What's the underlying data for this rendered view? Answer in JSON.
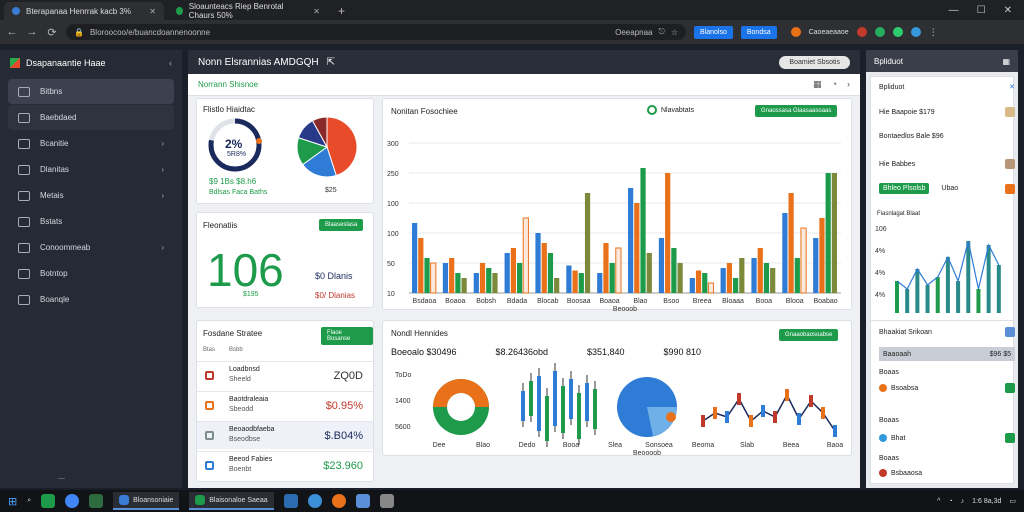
{
  "browser": {
    "tabs": [
      {
        "title": "Bterapanaa Henrrak kacb 3%",
        "active": true
      },
      {
        "title": "Sloaunteacs Riep Benrotal Chaurs 50%",
        "active": false
      }
    ],
    "address": "Bloroocoo/e/buancdoannenoonne",
    "address_tail": "Oeeapnaa",
    "buttons": [
      "Blanolso",
      "Bondsa",
      "Caoeaeaaoe"
    ]
  },
  "sidebar": {
    "brand": "Dsapanaantie Haae",
    "items": [
      {
        "label": "Bitbns"
      },
      {
        "label": "Baebdaed"
      },
      {
        "label": "Bcanitie"
      },
      {
        "label": "Dlanitas"
      },
      {
        "label": "Metais"
      },
      {
        "label": "Bstats"
      },
      {
        "label": "Conoommeab"
      },
      {
        "label": "Botntop"
      },
      {
        "label": "Boanqle"
      }
    ],
    "footer": "—"
  },
  "main": {
    "title": "Nonn Elsrannias  AMDGQH",
    "pill": "Boamiet Sbsotis",
    "subhead": "Norrann Shisnoe",
    "gauge": {
      "title": "Flistlo Hiaidtac",
      "value_label": "2%",
      "sub": "5R8%",
      "percent": 0.78,
      "stat1": "$9 1Bs  $8.h6",
      "stat2": "Bdlsas Faca Baths"
    },
    "pie1": {
      "label": "$25"
    },
    "big": {
      "title": "Fleonatiis",
      "button": "Blaaseslasa",
      "number": "106",
      "sub": "$195",
      "r1": "$0  Dlanis",
      "r2": "$0/  Dlanias"
    },
    "bar": {
      "title": "Nonitan Fosochiee",
      "legend": "Nlavabtats",
      "button": "Gnaossasa Glaasaasoaas"
    },
    "table": {
      "title": "Fosdane Stratee",
      "button": "Flaoe Bosanse",
      "cols": [
        "Btas",
        "Bsbb"
      ],
      "rows": [
        {
          "name": "Loadbnsd",
          "sub": "Sheeld",
          "value": "ZQ0⁠D"
        },
        {
          "name": "Baotdraleaia",
          "sub": "Sbeodd",
          "value": "$0.95%"
        },
        {
          "name": "Beoaodbfaeba",
          "sub": "Bseodbse",
          "value": "$.B04%"
        },
        {
          "name": "Beeod Fabies",
          "sub": "Boenbt",
          "value": "$23.960"
        }
      ]
    },
    "bottom": {
      "title": "Nondl Hennides",
      "button": "Gnaaobaosoabse",
      "stats": [
        "Boeoalo $30496",
        "$8.26436obd",
        "$351,840",
        "$990 810"
      ],
      "xlabels": [
        "Dee",
        "Blao",
        "Dedo",
        "Booa",
        "Slea",
        "Sonsoea",
        "Beoma",
        "Slab",
        "Beea",
        "Baoa"
      ],
      "axis_y": [
        "ToDo",
        "1400",
        "5600"
      ],
      "footer": "Beoooob"
    }
  },
  "chart_data": [
    {
      "type": "bar",
      "title": "Nonitan Fosochiee",
      "categories": [
        "Bsdaoa",
        "Boaoa",
        "Bobsh",
        "Bdada",
        "Blocab",
        "Boosaa",
        "Boaoa",
        "Blao",
        "Bsoo",
        "Breea",
        "Bloaaa",
        "Booa",
        "Blooa",
        "Boabao"
      ],
      "ylim": [
        0,
        300
      ],
      "yticks": [
        "300",
        "250",
        "100",
        "100",
        "50",
        "10"
      ],
      "xlabel": "Beooob",
      "series": [
        {
          "values": [
            140,
            60,
            40,
            80,
            120,
            55,
            40,
            210,
            110,
            30,
            50,
            70,
            160,
            110
          ]
        },
        {
          "values": [
            110,
            70,
            60,
            90,
            100,
            45,
            100,
            180,
            240,
            45,
            60,
            90,
            200,
            150
          ]
        },
        {
          "values": [
            70,
            40,
            50,
            60,
            80,
            40,
            60,
            250,
            90,
            40,
            30,
            60,
            70,
            240
          ]
        },
        {
          "values": [
            60,
            30,
            40,
            150,
            30,
            200,
            90,
            80,
            60,
            20,
            70,
            50,
            130,
            240
          ]
        }
      ]
    },
    {
      "type": "line",
      "title": "Fiasnlagat Blaat",
      "yticks": [
        "106",
        "4%",
        "4%",
        "4%"
      ],
      "values": [
        40,
        30,
        55,
        35,
        45,
        70,
        40,
        90,
        30,
        85,
        60
      ]
    }
  ],
  "rpanel": {
    "head": "Bpliduot",
    "rows": [
      "Hie  Baapoie $179",
      "Bontaedlos Bale $96",
      "Hie Babbes",
      "Bnvdoo Faacias",
      "Ubao",
      "Bhaakiat Srikoan",
      "Baaoaah",
      "Boaas",
      "Bsoabsa",
      "Bhat",
      "Bsbaaosa"
    ],
    "val": "$96 $5",
    "btn": "Bhleo Plsolsb"
  },
  "taskbar": {
    "apps": [
      "Bloansoniaie",
      "Blaisonaloe Saeaa"
    ],
    "clock": "1:6 8a,3d"
  }
}
